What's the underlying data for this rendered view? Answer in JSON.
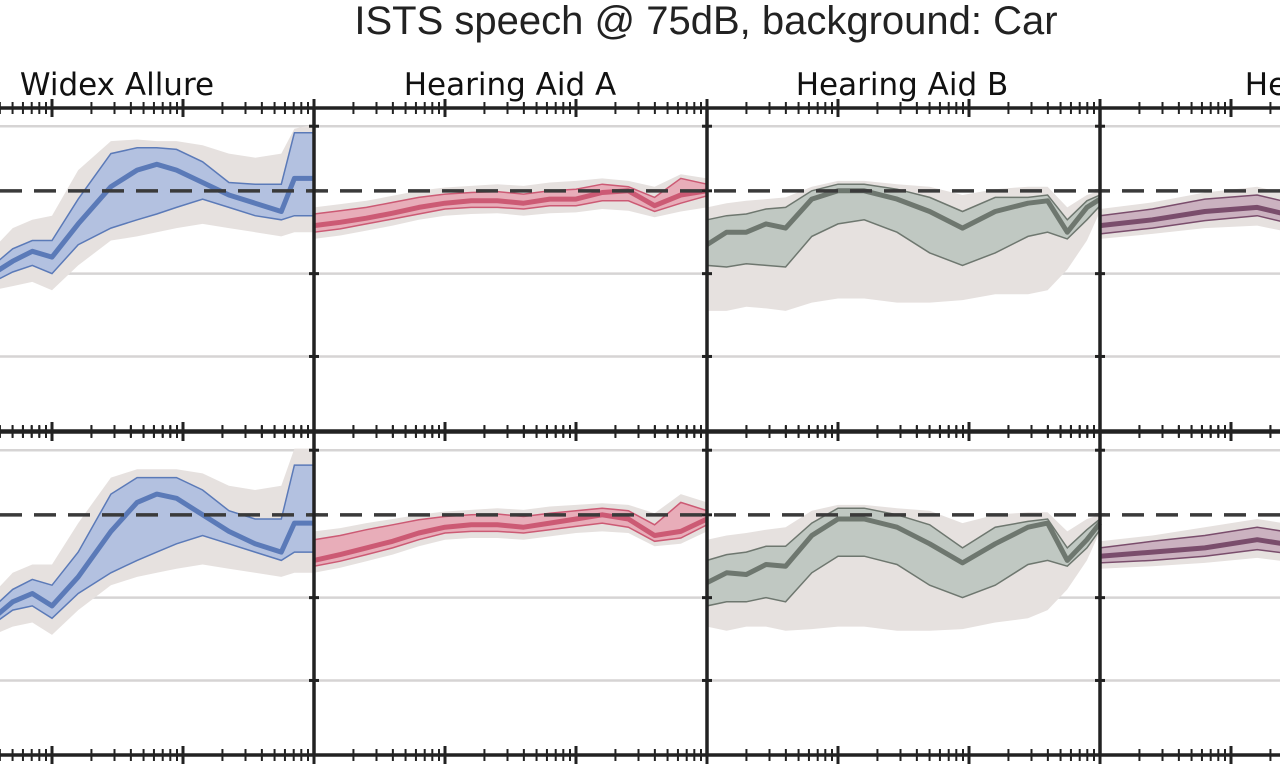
{
  "chart_data": {
    "type": "area",
    "title": "ISTS speech @ 75dB, background: Car",
    "panels": [
      "Widex Allure",
      "Hearing Aid A",
      "Hearing Aid B",
      "Hearin"
    ],
    "reference_line": 0,
    "gridlines": [
      -1,
      -2
    ],
    "ylim": [
      -2.9,
      1.0
    ],
    "grid": true,
    "rows": [
      {
        "series": [
          {
            "name": "Widex Allure",
            "color": "#5b7ab8",
            "fill": "#a9bbe0",
            "x": [
              0,
              0.1,
              0.25,
              0.4,
              0.55,
              0.7,
              0.85,
              1.0,
              1.2,
              1.45,
              1.65,
              1.8,
              1.95,
              2.15,
              2.35,
              2.55,
              2.75,
              2.85,
              3.0
            ],
            "mean": [
              -0.8,
              -0.95,
              -1.0,
              -1.02,
              -1.0,
              -0.85,
              -0.73,
              -0.8,
              -0.4,
              0.05,
              0.25,
              0.32,
              0.25,
              0.1,
              -0.05,
              -0.15,
              -0.25,
              0.15,
              0.15
            ],
            "lo": [
              -0.9,
              -1.05,
              -1.1,
              -1.1,
              -1.1,
              -0.98,
              -0.9,
              -1.0,
              -0.65,
              -0.45,
              -0.35,
              -0.28,
              -0.2,
              -0.1,
              -0.2,
              -0.3,
              -0.35,
              -0.3,
              -0.3
            ],
            "hi": [
              -0.65,
              -0.85,
              -0.92,
              -0.95,
              -0.9,
              -0.7,
              -0.6,
              -0.6,
              -0.1,
              0.45,
              0.52,
              0.52,
              0.5,
              0.35,
              0.1,
              0.08,
              0.08,
              0.7,
              0.7
            ],
            "bg_lo": [
              -1.0,
              -1.15,
              -1.2,
              -1.2,
              -1.2,
              -1.15,
              -1.1,
              -1.2,
              -0.9,
              -0.6,
              -0.55,
              -0.5,
              -0.45,
              -0.4,
              -0.45,
              -0.5,
              -0.55,
              -0.5,
              -0.5
            ],
            "bg_hi": [
              -0.5,
              -0.7,
              -0.8,
              -0.8,
              -0.7,
              -0.45,
              -0.35,
              -0.3,
              0.25,
              0.6,
              0.62,
              0.6,
              0.6,
              0.55,
              0.45,
              0.4,
              0.45,
              0.75,
              0.8
            ]
          },
          {
            "name": "Hearing Aid A",
            "color": "#cc5a74",
            "fill": "#e7a3b3",
            "x": [
              0,
              0.2,
              0.4,
              0.6,
              0.8,
              1.0,
              1.2,
              1.4,
              1.6,
              1.8,
              2.0,
              2.2,
              2.4,
              2.6,
              2.8,
              3.0
            ],
            "mean": [
              -0.42,
              -0.38,
              -0.33,
              -0.27,
              -0.2,
              -0.15,
              -0.12,
              -0.12,
              -0.15,
              -0.1,
              -0.1,
              -0.02,
              0.0,
              -0.18,
              -0.05,
              0.0
            ],
            "lo": [
              -0.5,
              -0.46,
              -0.4,
              -0.34,
              -0.28,
              -0.22,
              -0.2,
              -0.2,
              -0.22,
              -0.18,
              -0.18,
              -0.12,
              -0.12,
              -0.25,
              -0.15,
              -0.06
            ],
            "hi": [
              -0.28,
              -0.24,
              -0.2,
              -0.14,
              -0.08,
              -0.04,
              -0.02,
              -0.01,
              -0.04,
              0.0,
              0.02,
              0.08,
              0.05,
              -0.08,
              0.15,
              0.08
            ],
            "bg_lo": [
              -0.58,
              -0.54,
              -0.48,
              -0.42,
              -0.35,
              -0.3,
              -0.28,
              -0.27,
              -0.3,
              -0.27,
              -0.26,
              -0.22,
              -0.24,
              -0.32,
              -0.25,
              -0.2
            ],
            "bg_hi": [
              -0.2,
              -0.16,
              -0.12,
              -0.06,
              0.0,
              0.04,
              0.06,
              0.08,
              0.06,
              0.1,
              0.12,
              0.15,
              0.12,
              0.05,
              0.2,
              0.15
            ]
          },
          {
            "name": "Hearing Aid B",
            "color": "#6e776f",
            "fill": "#b9c3bd",
            "x": [
              0,
              0.15,
              0.3,
              0.45,
              0.6,
              0.8,
              1.0,
              1.2,
              1.45,
              1.7,
              1.95,
              2.2,
              2.45,
              2.6,
              2.75,
              2.9,
              3.0
            ],
            "mean": [
              -0.65,
              -0.5,
              -0.5,
              -0.4,
              -0.45,
              -0.1,
              0.0,
              0.0,
              -0.1,
              -0.25,
              -0.45,
              -0.25,
              -0.15,
              -0.12,
              -0.5,
              -0.2,
              -0.1
            ],
            "lo": [
              -0.9,
              -0.92,
              -0.88,
              -0.9,
              -0.92,
              -0.55,
              -0.4,
              -0.35,
              -0.5,
              -0.75,
              -0.9,
              -0.75,
              -0.55,
              -0.5,
              -0.58,
              -0.35,
              -0.18
            ],
            "hi": [
              -0.35,
              -0.3,
              -0.28,
              -0.22,
              -0.2,
              0.0,
              0.08,
              0.08,
              0.02,
              -0.08,
              -0.25,
              -0.08,
              -0.08,
              -0.05,
              -0.35,
              -0.12,
              -0.05
            ],
            "bg_lo": [
              -1.45,
              -1.45,
              -1.4,
              -1.42,
              -1.45,
              -1.35,
              -1.3,
              -1.3,
              -1.35,
              -1.35,
              -1.32,
              -1.25,
              -1.25,
              -1.2,
              -0.95,
              -0.6,
              -0.25
            ],
            "bg_hi": [
              -0.2,
              -0.15,
              -0.12,
              -0.1,
              -0.08,
              0.05,
              0.12,
              0.12,
              0.08,
              0.05,
              -0.05,
              0.02,
              0.05,
              0.05,
              -0.2,
              -0.05,
              0.0
            ]
          },
          {
            "name": "Hearin",
            "color": "#7a4d6c",
            "fill": "#c5a9bb",
            "x": [
              0,
              0.4,
              0.8,
              1.2,
              1.6,
              2.0,
              2.4,
              2.8,
              3.0
            ],
            "mean": [
              -0.42,
              -0.35,
              -0.25,
              -0.2,
              -0.35,
              -0.45,
              -0.5,
              -0.55,
              -0.6
            ],
            "lo": [
              -0.52,
              -0.45,
              -0.36,
              -0.3,
              -0.45,
              -0.55,
              -0.6,
              -0.65,
              -0.7
            ],
            "hi": [
              -0.3,
              -0.22,
              -0.1,
              -0.05,
              -0.2,
              -0.3,
              -0.35,
              -0.4,
              -0.45
            ],
            "bg_lo": [
              -0.58,
              -0.52,
              -0.45,
              -0.42,
              -0.55,
              -0.65,
              -0.7,
              -0.75,
              -0.8
            ],
            "bg_hi": [
              -0.22,
              -0.14,
              -0.02,
              0.05,
              -0.1,
              -0.2,
              -0.25,
              -0.3,
              -0.35
            ]
          }
        ]
      },
      {
        "series": [
          {
            "name": "Widex Allure",
            "color": "#5b7ab8",
            "fill": "#a9bbe0",
            "x": [
              0,
              0.1,
              0.25,
              0.4,
              0.55,
              0.7,
              0.85,
              1.0,
              1.2,
              1.45,
              1.65,
              1.8,
              1.95,
              2.15,
              2.35,
              2.55,
              2.75,
              2.85,
              3.0
            ],
            "mean": [
              -1.05,
              -1.25,
              -1.28,
              -1.28,
              -1.25,
              -1.05,
              -0.95,
              -1.1,
              -0.75,
              -0.2,
              0.15,
              0.25,
              0.2,
              0.0,
              -0.2,
              -0.35,
              -0.45,
              -0.1,
              -0.1
            ],
            "lo": [
              -1.15,
              -1.35,
              -1.38,
              -1.36,
              -1.32,
              -1.15,
              -1.1,
              -1.25,
              -0.95,
              -0.7,
              -0.55,
              -0.45,
              -0.35,
              -0.25,
              -0.35,
              -0.45,
              -0.55,
              -0.45,
              -0.45
            ],
            "hi": [
              -0.9,
              -1.15,
              -1.18,
              -1.18,
              -1.12,
              -0.9,
              -0.78,
              -0.85,
              -0.45,
              0.25,
              0.45,
              0.45,
              0.45,
              0.3,
              0.05,
              -0.05,
              -0.05,
              0.6,
              0.6
            ],
            "bg_lo": [
              -1.25,
              -1.45,
              -1.5,
              -1.48,
              -1.45,
              -1.35,
              -1.3,
              -1.45,
              -1.15,
              -0.85,
              -0.75,
              -0.7,
              -0.65,
              -0.6,
              -0.65,
              -0.7,
              -0.75,
              -0.7,
              -0.7
            ],
            "bg_hi": [
              -0.75,
              -0.95,
              -1.05,
              -1.05,
              -0.95,
              -0.7,
              -0.6,
              -0.6,
              -0.1,
              0.45,
              0.55,
              0.55,
              0.55,
              0.5,
              0.35,
              0.3,
              0.35,
              0.8,
              0.8
            ]
          },
          {
            "name": "Hearing Aid A",
            "color": "#cc5a74",
            "fill": "#e7a3b3",
            "x": [
              0,
              0.2,
              0.4,
              0.6,
              0.8,
              1.0,
              1.2,
              1.4,
              1.6,
              1.8,
              2.0,
              2.2,
              2.4,
              2.6,
              2.8,
              3.0
            ],
            "mean": [
              -0.55,
              -0.48,
              -0.4,
              -0.32,
              -0.22,
              -0.15,
              -0.12,
              -0.12,
              -0.15,
              -0.1,
              -0.05,
              0.0,
              -0.05,
              -0.25,
              -0.2,
              -0.05
            ],
            "lo": [
              -0.62,
              -0.56,
              -0.48,
              -0.4,
              -0.3,
              -0.22,
              -0.2,
              -0.2,
              -0.22,
              -0.18,
              -0.14,
              -0.1,
              -0.15,
              -0.32,
              -0.28,
              -0.12
            ],
            "hi": [
              -0.3,
              -0.25,
              -0.18,
              -0.12,
              -0.06,
              -0.02,
              0.0,
              0.01,
              -0.02,
              0.02,
              0.05,
              0.08,
              0.05,
              -0.12,
              0.15,
              0.05
            ],
            "bg_lo": [
              -0.7,
              -0.64,
              -0.56,
              -0.48,
              -0.38,
              -0.3,
              -0.28,
              -0.28,
              -0.3,
              -0.26,
              -0.22,
              -0.2,
              -0.22,
              -0.38,
              -0.35,
              -0.2
            ],
            "bg_hi": [
              -0.2,
              -0.16,
              -0.1,
              -0.05,
              0.0,
              0.04,
              0.06,
              0.08,
              0.06,
              0.1,
              0.12,
              0.14,
              0.12,
              0.02,
              0.25,
              0.15
            ]
          },
          {
            "name": "Hearing Aid B",
            "color": "#6e776f",
            "fill": "#b9c3bd",
            "x": [
              0,
              0.15,
              0.3,
              0.45,
              0.6,
              0.8,
              1.0,
              1.2,
              1.45,
              1.7,
              1.95,
              2.2,
              2.45,
              2.6,
              2.75,
              2.9,
              3.0
            ],
            "mean": [
              -0.82,
              -0.7,
              -0.72,
              -0.6,
              -0.62,
              -0.25,
              -0.05,
              -0.05,
              -0.15,
              -0.35,
              -0.58,
              -0.35,
              -0.15,
              -0.1,
              -0.55,
              -0.3,
              -0.1
            ],
            "lo": [
              -1.1,
              -1.05,
              -1.05,
              -1.0,
              -1.05,
              -0.7,
              -0.5,
              -0.5,
              -0.6,
              -0.85,
              -1.0,
              -0.85,
              -0.6,
              -0.55,
              -0.62,
              -0.4,
              -0.18
            ],
            "hi": [
              -0.55,
              -0.48,
              -0.45,
              -0.38,
              -0.38,
              -0.1,
              0.08,
              0.08,
              0.0,
              -0.12,
              -0.4,
              -0.15,
              -0.08,
              -0.05,
              -0.4,
              -0.18,
              -0.05
            ],
            "bg_lo": [
              -1.35,
              -1.4,
              -1.35,
              -1.35,
              -1.4,
              -1.38,
              -1.35,
              -1.35,
              -1.4,
              -1.4,
              -1.38,
              -1.3,
              -1.25,
              -1.15,
              -0.9,
              -0.55,
              -0.2
            ],
            "bg_hi": [
              -0.3,
              -0.25,
              -0.22,
              -0.18,
              -0.15,
              0.05,
              0.12,
              0.12,
              0.08,
              0.05,
              -0.1,
              0.0,
              0.03,
              0.03,
              -0.2,
              -0.05,
              0.0
            ]
          },
          {
            "name": "Hearin",
            "color": "#7a4d6c",
            "fill": "#c5a9bb",
            "x": [
              0,
              0.4,
              0.8,
              1.2,
              1.6,
              2.0,
              2.4,
              2.8,
              3.0
            ],
            "mean": [
              -0.5,
              -0.45,
              -0.4,
              -0.3,
              -0.4,
              -0.5,
              -0.55,
              -0.6,
              -0.65
            ],
            "lo": [
              -0.58,
              -0.55,
              -0.5,
              -0.42,
              -0.5,
              -0.6,
              -0.65,
              -0.7,
              -0.75
            ],
            "hi": [
              -0.4,
              -0.32,
              -0.25,
              -0.15,
              -0.25,
              -0.35,
              -0.4,
              -0.45,
              -0.5
            ],
            "bg_lo": [
              -0.65,
              -0.62,
              -0.58,
              -0.52,
              -0.6,
              -0.7,
              -0.75,
              -0.8,
              -0.85
            ],
            "bg_hi": [
              -0.32,
              -0.25,
              -0.15,
              -0.05,
              -0.15,
              -0.25,
              -0.3,
              -0.35,
              -0.4
            ]
          }
        ]
      }
    ]
  }
}
